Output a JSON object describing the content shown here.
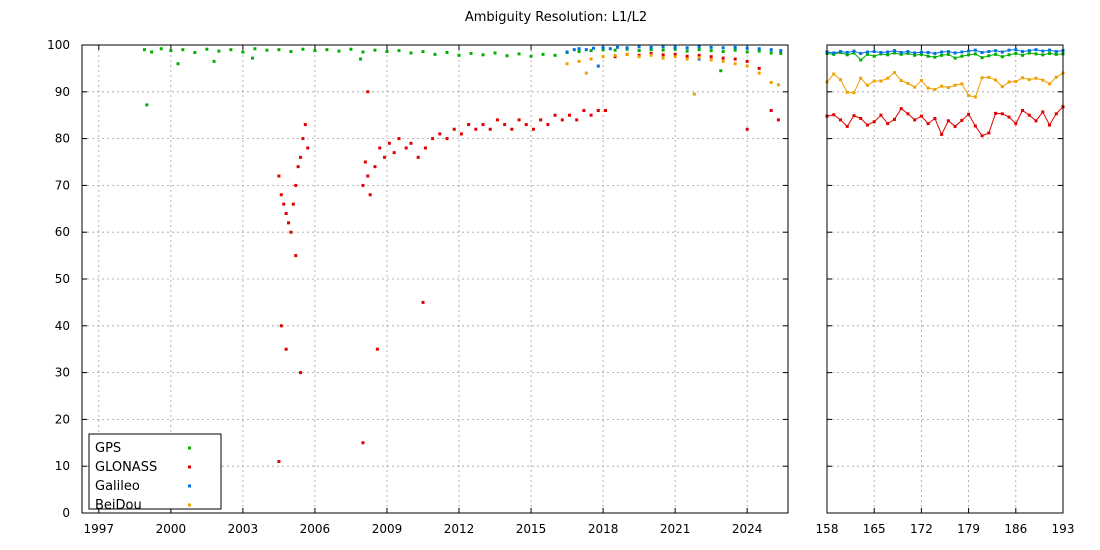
{
  "chart_data": {
    "type": "scatter",
    "title": "Ambiguity Resolution: L1/L2",
    "ylim": [
      0,
      100
    ],
    "yticks": [
      0,
      10,
      20,
      30,
      40,
      50,
      60,
      70,
      80,
      90,
      100
    ],
    "legend_position": "bottom-left",
    "grid": true,
    "series_styles": [
      {
        "name": "GPS",
        "color": "#00b000"
      },
      {
        "name": "GLONASS",
        "color": "#e00000"
      },
      {
        "name": "Galileo",
        "color": "#0070e0"
      },
      {
        "name": "BeiDou",
        "color": "#f0a000"
      }
    ],
    "panels": [
      {
        "id": "long_term",
        "x_unit": "year",
        "xlim": [
          1996.3,
          2025.7
        ],
        "xticks": [
          "1997",
          "2000",
          "2003",
          "2006",
          "2009",
          "2012",
          "2015",
          "2018",
          "2021",
          "2024"
        ],
        "xtick_values": [
          1997,
          2000,
          2003,
          2006,
          2009,
          2012,
          2015,
          2018,
          2021,
          2024
        ],
        "series": [
          {
            "name": "GPS",
            "x": [
              1998.9,
              1999.2,
              1999.6,
              2000.0,
              2000.5,
              2001.0,
              2001.5,
              2002.0,
              2002.5,
              2003.0,
              2003.5,
              2004.0,
              2004.5,
              2005.0,
              2005.5,
              2006.0,
              2006.5,
              2007.0,
              2007.5,
              2008.0,
              2008.5,
              2009.0,
              2009.5,
              2010.0,
              2010.5,
              2011.0,
              2011.5,
              2012.0,
              2012.5,
              2013.0,
              2013.5,
              2014.0,
              2014.5,
              2015.0,
              2015.5,
              2016.0,
              2016.5,
              2017.0,
              2017.5,
              2018.0,
              2018.5,
              2019.0,
              2019.5,
              2020.0,
              2020.5,
              2021.0,
              2021.5,
              2022.0,
              2022.5,
              2023.0,
              2023.5,
              2024.0,
              2024.5,
              2025.0,
              2025.4,
              1999.0,
              2000.3,
              2001.8,
              2003.4,
              2007.9,
              2022.9
            ],
            "y": [
              99.0,
              98.5,
              99.2,
              98.8,
              99.0,
              98.4,
              99.1,
              98.7,
              99.0,
              98.5,
              99.2,
              98.9,
              99.0,
              98.6,
              99.1,
              98.8,
              99.0,
              98.7,
              99.1,
              98.5,
              98.9,
              98.6,
              98.8,
              98.3,
              98.6,
              98.0,
              98.4,
              97.8,
              98.2,
              97.9,
              98.3,
              97.7,
              98.1,
              97.6,
              98.0,
              97.8,
              98.4,
              98.6,
              98.8,
              99.0,
              98.9,
              99.1,
              98.8,
              99.0,
              98.9,
              99.1,
              98.7,
              99.0,
              98.8,
              98.6,
              98.9,
              98.5,
              98.7,
              98.3,
              98.2,
              87.2,
              96.0,
              96.5,
              97.2,
              97.0,
              94.5
            ]
          },
          {
            "name": "GLONASS",
            "x": [
              2004.5,
              2004.6,
              2004.7,
              2004.8,
              2004.9,
              2005.0,
              2005.1,
              2005.2,
              2005.3,
              2005.4,
              2005.5,
              2005.6,
              2005.7,
              2004.6,
              2004.5,
              2004.8,
              2005.2,
              2005.4,
              2008.0,
              2008.1,
              2008.2,
              2008.3,
              2008.5,
              2008.7,
              2008.9,
              2009.1,
              2009.3,
              2009.5,
              2009.8,
              2010.0,
              2010.3,
              2010.6,
              2010.9,
              2011.2,
              2011.5,
              2011.8,
              2012.1,
              2012.4,
              2012.7,
              2013.0,
              2013.3,
              2013.6,
              2013.9,
              2014.2,
              2014.5,
              2014.8,
              2015.1,
              2015.4,
              2015.7,
              2016.0,
              2016.3,
              2016.6,
              2016.9,
              2017.2,
              2017.5,
              2017.8,
              2018.1,
              2018.5,
              2019.0,
              2019.5,
              2020.0,
              2020.5,
              2021.0,
              2021.5,
              2022.0,
              2022.5,
              2023.0,
              2023.5,
              2024.0,
              2024.5,
              2025.0,
              2025.3,
              2008.0,
              2008.2,
              2008.6,
              2010.5,
              2024.0
            ],
            "y": [
              72.0,
              68.0,
              66.0,
              64.0,
              62.0,
              60.0,
              66.0,
              70.0,
              74.0,
              76.0,
              80.0,
              83.0,
              78.0,
              40.0,
              11.0,
              35.0,
              55.0,
              30.0,
              70.0,
              75.0,
              72.0,
              68.0,
              74.0,
              78.0,
              76.0,
              79.0,
              77.0,
              80.0,
              78.0,
              79.0,
              76.0,
              78.0,
              80.0,
              81.0,
              80.0,
              82.0,
              81.0,
              83.0,
              82.0,
              83.0,
              82.0,
              84.0,
              83.0,
              82.0,
              84.0,
              83.0,
              82.0,
              84.0,
              83.0,
              85.0,
              84.0,
              85.0,
              84.0,
              86.0,
              85.0,
              86.0,
              86.0,
              97.5,
              98.0,
              97.8,
              98.2,
              97.9,
              98.0,
              97.6,
              97.8,
              97.5,
              97.2,
              97.0,
              96.5,
              95.0,
              86.0,
              84.0,
              15.0,
              90.0,
              35.0,
              45.0,
              82.0
            ]
          },
          {
            "name": "Galileo",
            "x": [
              2016.5,
              2016.8,
              2017.0,
              2017.3,
              2017.6,
              2018.0,
              2018.3,
              2018.6,
              2019.0,
              2019.5,
              2020.0,
              2020.5,
              2021.0,
              2021.5,
              2022.0,
              2022.5,
              2023.0,
              2023.5,
              2024.0,
              2024.5,
              2025.0,
              2025.4,
              2017.8,
              2022.0
            ],
            "y": [
              98.5,
              99.0,
              99.2,
              99.0,
              99.3,
              99.4,
              99.2,
              99.5,
              99.4,
              99.6,
              99.5,
              99.6,
              99.5,
              99.4,
              99.6,
              99.5,
              99.4,
              99.5,
              99.3,
              99.2,
              99.0,
              98.8,
              95.5,
              97.0
            ]
          },
          {
            "name": "BeiDou",
            "x": [
              2016.5,
              2017.0,
              2017.5,
              2018.0,
              2018.5,
              2019.0,
              2019.5,
              2020.0,
              2020.5,
              2021.0,
              2021.5,
              2022.0,
              2022.5,
              2023.0,
              2023.5,
              2024.0,
              2024.5,
              2025.0,
              2025.3,
              2017.3,
              2021.8
            ],
            "y": [
              96.0,
              96.5,
              97.0,
              97.5,
              97.8,
              98.0,
              97.5,
              97.8,
              97.2,
              97.5,
              97.0,
              97.3,
              96.8,
              96.5,
              96.0,
              95.5,
              94.0,
              92.0,
              91.5,
              94.0,
              89.5
            ]
          }
        ]
      },
      {
        "id": "recent",
        "x_unit": "day",
        "xlim": [
          158,
          193
        ],
        "xticks": [
          "158",
          "165",
          "172",
          "179",
          "186",
          "193"
        ],
        "xtick_values": [
          158,
          165,
          172,
          179,
          186,
          193
        ],
        "series": [
          {
            "name": "GPS",
            "x": [
              158,
              159,
              160,
              161,
              162,
              163,
              164,
              165,
              166,
              167,
              168,
              169,
              170,
              171,
              172,
              173,
              174,
              175,
              176,
              177,
              178,
              179,
              180,
              181,
              182,
              183,
              184,
              185,
              186,
              187,
              188,
              189,
              190,
              191,
              192,
              193
            ],
            "y": [
              98.2,
              98.0,
              98.4,
              97.9,
              98.3,
              96.8,
              98.0,
              97.6,
              98.1,
              97.9,
              98.3,
              98.0,
              98.2,
              97.8,
              98.0,
              97.6,
              97.4,
              97.8,
              98.0,
              97.2,
              97.6,
              97.9,
              98.1,
              97.3,
              97.7,
              98.0,
              97.5,
              97.9,
              98.2,
              97.8,
              98.3,
              98.1,
              97.9,
              98.2,
              98.0,
              98.1
            ]
          },
          {
            "name": "GLONASS",
            "x": [
              158,
              159,
              160,
              161,
              162,
              163,
              164,
              165,
              166,
              167,
              168,
              169,
              170,
              171,
              172,
              173,
              174,
              175,
              176,
              177,
              178,
              179,
              180,
              181,
              182,
              183,
              184,
              185,
              186,
              187,
              188,
              189,
              190,
              191,
              192,
              193
            ],
            "y": [
              84.8,
              85.1,
              84.0,
              82.6,
              84.9,
              84.3,
              82.9,
              83.6,
              85.0,
              83.2,
              84.1,
              86.4,
              85.3,
              84.0,
              84.8,
              83.2,
              84.3,
              80.9,
              83.8,
              82.6,
              83.9,
              85.2,
              82.7,
              80.6,
              81.2,
              85.4,
              85.3,
              84.6,
              83.2,
              86.0,
              85.0,
              83.8,
              85.7,
              82.9,
              85.3,
              86.8
            ]
          },
          {
            "name": "Galileo",
            "x": [
              158,
              159,
              160,
              161,
              162,
              163,
              164,
              165,
              166,
              167,
              168,
              169,
              170,
              171,
              172,
              173,
              174,
              175,
              176,
              177,
              178,
              179,
              180,
              181,
              182,
              183,
              184,
              185,
              186,
              187,
              188,
              189,
              190,
              191,
              192,
              193
            ],
            "y": [
              98.5,
              98.3,
              98.6,
              98.4,
              98.7,
              98.2,
              98.5,
              98.6,
              98.4,
              98.5,
              98.8,
              98.4,
              98.6,
              98.3,
              98.5,
              98.4,
              98.2,
              98.5,
              98.6,
              98.3,
              98.5,
              98.7,
              98.9,
              98.4,
              98.6,
              98.8,
              98.5,
              98.9,
              99.0,
              98.6,
              98.8,
              99.0,
              98.7,
              98.9,
              98.6,
              98.8
            ]
          },
          {
            "name": "BeiDou",
            "x": [
              158,
              159,
              160,
              161,
              162,
              163,
              164,
              165,
              166,
              167,
              168,
              169,
              170,
              171,
              172,
              173,
              174,
              175,
              176,
              177,
              178,
              179,
              180,
              181,
              182,
              183,
              184,
              185,
              186,
              187,
              188,
              189,
              190,
              191,
              192,
              193
            ],
            "y": [
              92.1,
              93.8,
              92.6,
              89.9,
              89.8,
              92.9,
              91.4,
              92.3,
              92.3,
              92.9,
              94.1,
              92.4,
              91.8,
              91.0,
              92.4,
              90.8,
              90.5,
              91.2,
              90.9,
              91.4,
              91.7,
              89.2,
              88.9,
              93.0,
              93.1,
              92.5,
              91.1,
              92.1,
              92.2,
              93.0,
              92.6,
              92.9,
              92.5,
              91.7,
              93.1,
              94.0
            ]
          }
        ]
      }
    ]
  }
}
